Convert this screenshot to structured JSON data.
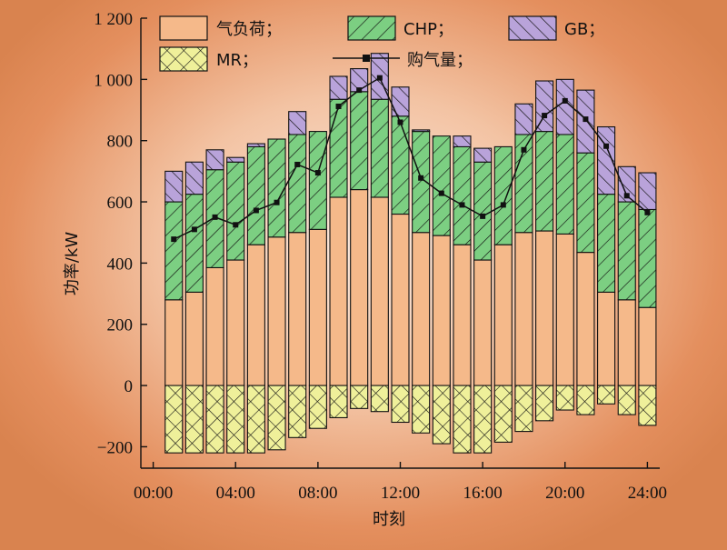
{
  "chart_data": {
    "type": "bar",
    "stacked": true,
    "ylabel": "功率/kW",
    "xlabel": "时刻",
    "ylim": [
      -270,
      1200
    ],
    "yticks": [
      -200,
      0,
      200,
      400,
      600,
      800,
      1000,
      1200
    ],
    "ytick_labels": [
      "−200",
      "0",
      "200",
      "400",
      "600",
      "800",
      "1 000",
      "1 200"
    ],
    "xticks": [
      0,
      4,
      8,
      12,
      16,
      20,
      24
    ],
    "xtick_labels": [
      "00:00",
      "04:00",
      "08:00",
      "12:00",
      "16:00",
      "20:00",
      "24:00"
    ],
    "xlim": [
      -0.6,
      24.6
    ],
    "categories": [
      "1",
      "2",
      "3",
      "4",
      "5",
      "6",
      "7",
      "8",
      "9",
      "10",
      "11",
      "12",
      "13",
      "14",
      "15",
      "16",
      "17",
      "18",
      "19",
      "20",
      "21",
      "22",
      "23",
      "24"
    ],
    "series": [
      {
        "name": "气负荷",
        "color": "#f5b98a",
        "pattern": "solid",
        "values": [
          280,
          305,
          385,
          410,
          460,
          485,
          500,
          510,
          615,
          640,
          615,
          560,
          500,
          490,
          460,
          410,
          460,
          500,
          505,
          495,
          435,
          305,
          280,
          255
        ]
      },
      {
        "name": "CHP",
        "color": "#7ccf82",
        "pattern": "diagonal",
        "values": [
          320,
          320,
          320,
          320,
          320,
          320,
          320,
          320,
          320,
          320,
          320,
          320,
          330,
          325,
          320,
          320,
          320,
          320,
          325,
          325,
          325,
          320,
          320,
          320
        ]
      },
      {
        "name": "GB",
        "color": "#b9a3da",
        "pattern": "back-diagonal",
        "values": [
          100,
          105,
          65,
          15,
          10,
          0,
          75,
          0,
          75,
          75,
          150,
          95,
          5,
          0,
          35,
          45,
          0,
          100,
          165,
          180,
          205,
          220,
          115,
          120
        ]
      },
      {
        "name": "MR",
        "color": "#eff09a",
        "pattern": "crosshatch",
        "values": [
          -220,
          -220,
          -220,
          -220,
          -220,
          -210,
          -170,
          -140,
          -105,
          -75,
          -85,
          -120,
          -155,
          -190,
          -220,
          -220,
          -185,
          -150,
          -115,
          -80,
          -95,
          -60,
          -95,
          -130
        ]
      }
    ],
    "line": {
      "name": "购气量",
      "color": "#111111",
      "values": [
        478,
        510,
        550,
        525,
        572,
        598,
        722,
        695,
        912,
        965,
        1005,
        860,
        678,
        628,
        590,
        553,
        590,
        770,
        882,
        930,
        870,
        782,
        620,
        565
      ]
    },
    "legend_position": "top",
    "grid": false
  }
}
